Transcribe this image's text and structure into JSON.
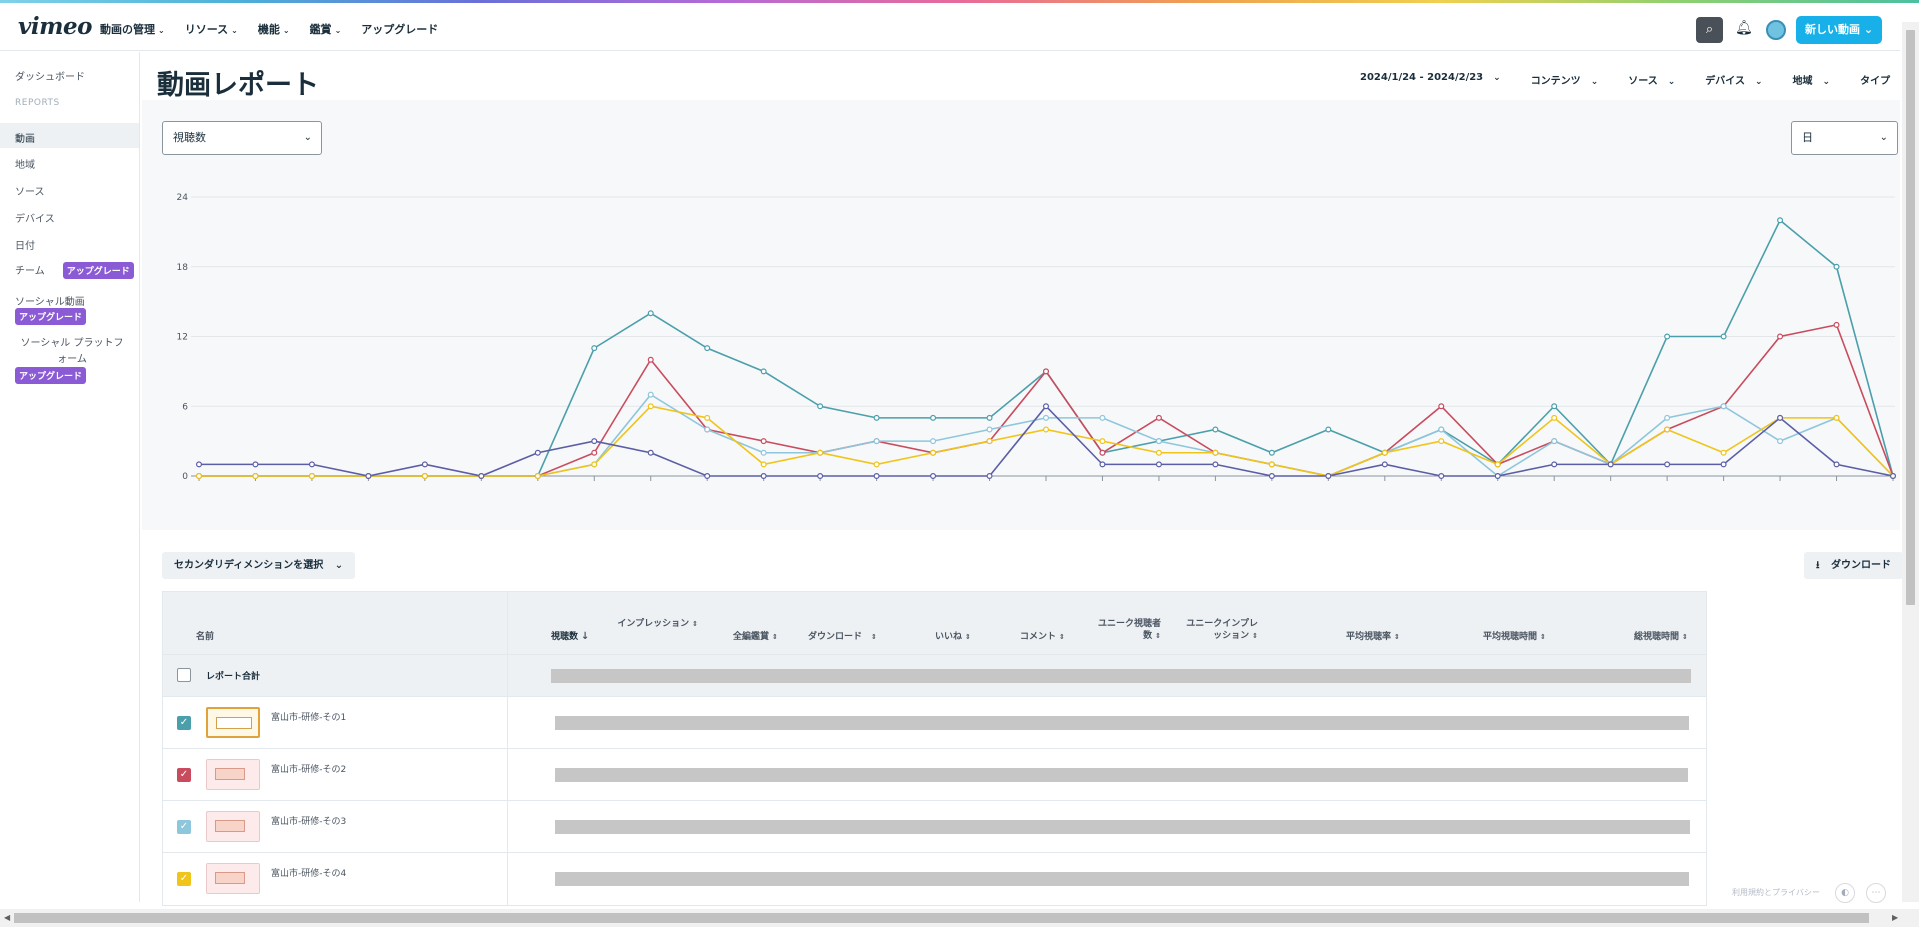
{
  "header": {
    "logo": "vimeo",
    "nav": [
      "動画の管理",
      "リソース",
      "機能",
      "鑑賞",
      "アップグレード"
    ],
    "new_video": "新しい動画"
  },
  "sidebar": {
    "dashboard": "ダッシュボード",
    "reports_heading": "REPORTS",
    "items": [
      "動画",
      "地域",
      "ソース",
      "デバイス",
      "日付"
    ],
    "team": "チーム",
    "social_video": "ソーシャル動画",
    "social_platform": "ソーシャル プラットフォーム",
    "upgrade_badge": "アップグレード"
  },
  "page": {
    "title": "動画レポート",
    "filters": [
      "2024/1/24 - 2024/2/23",
      "コンテンツ",
      "ソース",
      "デバイス",
      "地域",
      "タイプ"
    ],
    "metric_select": "視聴数",
    "interval_select": "日"
  },
  "chart_data": {
    "type": "line",
    "ylim": [
      0,
      24
    ],
    "yticks": [
      "0",
      "6",
      "12",
      "18",
      "24"
    ],
    "x_count": 31,
    "grid": true,
    "series": [
      {
        "color": "#4b9fab",
        "values": [
          0,
          0,
          0,
          0,
          0,
          0,
          0,
          11,
          14,
          11,
          9,
          6,
          5,
          5,
          5,
          9,
          2,
          3,
          4,
          2,
          4,
          2,
          4,
          1,
          6,
          1,
          12,
          12,
          22,
          18,
          0
        ]
      },
      {
        "color": "#c94c5e",
        "values": [
          0,
          0,
          0,
          0,
          0,
          0,
          0,
          2,
          10,
          4,
          3,
          2,
          3,
          2,
          3,
          9,
          2,
          5,
          2,
          1,
          0,
          2,
          6,
          1,
          3,
          1,
          4,
          6,
          12,
          13,
          0
        ]
      },
      {
        "color": "#8ec6dc",
        "values": [
          0,
          0,
          0,
          0,
          0,
          0,
          0,
          1,
          7,
          4,
          2,
          2,
          3,
          3,
          4,
          5,
          5,
          3,
          2,
          1,
          0,
          2,
          4,
          0,
          3,
          1,
          5,
          6,
          3,
          5,
          0
        ]
      },
      {
        "color": "#f0c419",
        "values": [
          0,
          0,
          0,
          0,
          0,
          0,
          0,
          1,
          6,
          5,
          1,
          2,
          1,
          2,
          3,
          4,
          3,
          2,
          2,
          1,
          0,
          2,
          3,
          1,
          5,
          1,
          4,
          2,
          5,
          5,
          0
        ]
      },
      {
        "color": "#5b5ea6",
        "values": [
          1,
          1,
          1,
          0,
          1,
          0,
          2,
          3,
          2,
          0,
          0,
          0,
          0,
          0,
          0,
          6,
          1,
          1,
          1,
          0,
          0,
          1,
          0,
          0,
          1,
          1,
          1,
          1,
          5,
          1,
          0
        ]
      }
    ]
  },
  "table": {
    "secondary_dimension": "セカンダリディメンションを選択",
    "download": "ダウンロード",
    "columns": {
      "name": "名前",
      "views": "視聴数",
      "impressions": "インプレッション",
      "full_views": "全編鑑賞",
      "downloads": "ダウンロード",
      "likes": "いいね",
      "comments": "コメント",
      "unique_viewers": "ユニーク視聴者数",
      "unique_impressions": "ユニークインプレッション",
      "avg_view_rate": "平均視聴率",
      "avg_view_time": "平均視聴時間",
      "total_view_time": "総視聴時間"
    },
    "total_label": "レポート合計",
    "rows": [
      {
        "name": "富山市-研修-その1",
        "color": "#4b9fab",
        "checked": true
      },
      {
        "name": "富山市-研修-その2",
        "color": "#c94c5e",
        "checked": true
      },
      {
        "name": "富山市-研修-その3",
        "color": "#8ec6dc",
        "checked": true
      },
      {
        "name": "富山市-研修-その4",
        "color": "#f0c419",
        "checked": true
      }
    ]
  },
  "footer": {
    "terms": "利用規約とプライバシー"
  }
}
